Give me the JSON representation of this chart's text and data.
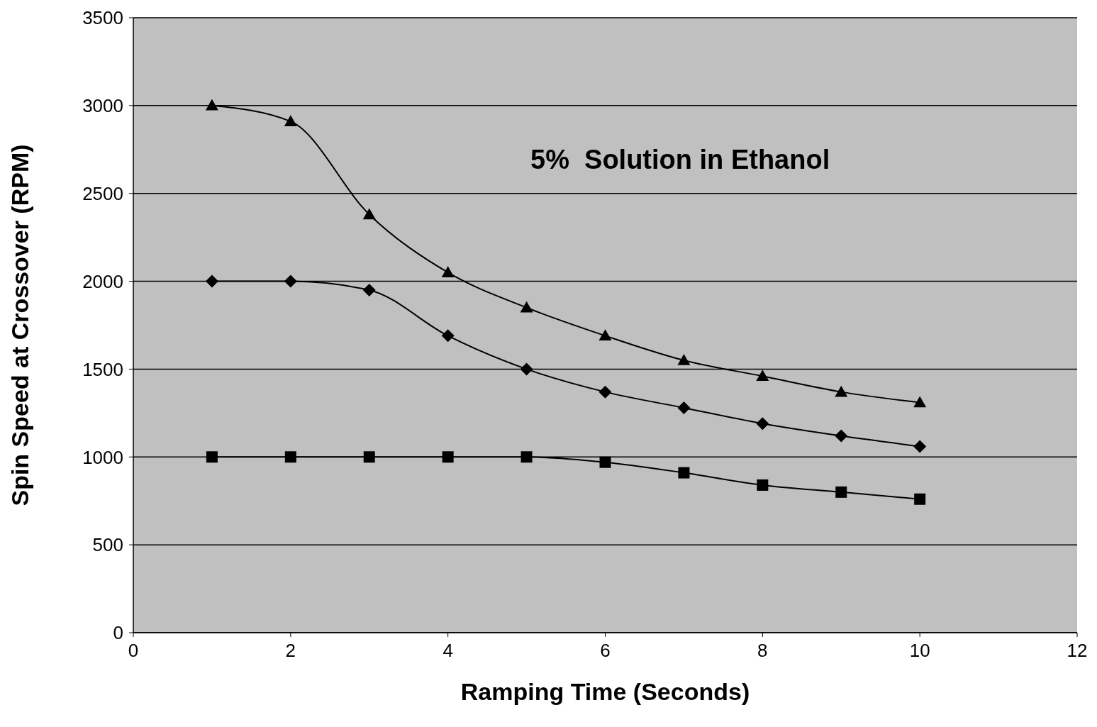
{
  "chart_data": {
    "type": "line",
    "xlabel": "Ramping Time (Seconds)",
    "ylabel": "Spin Speed at Crossover (RPM)",
    "x": [
      1,
      2,
      3,
      4,
      5,
      6,
      7,
      8,
      9,
      10
    ],
    "series": [
      {
        "color": "#000000",
        "marker": "triangle",
        "values": [
          3000,
          2910,
          2380,
          2050,
          1850,
          1690,
          1550,
          1460,
          1370,
          1310
        ]
      },
      {
        "color": "#000000",
        "marker": "diamond",
        "values": [
          2000,
          2000,
          1950,
          1690,
          1500,
          1370,
          1280,
          1190,
          1120,
          1060
        ]
      },
      {
        "color": "#000000",
        "marker": "square",
        "values": [
          1000,
          1000,
          1000,
          1000,
          1000,
          970,
          910,
          840,
          800,
          760
        ]
      }
    ],
    "xlim": [
      0,
      12
    ],
    "xticks": [
      0,
      2,
      4,
      6,
      8,
      10,
      12
    ],
    "ylim": [
      0,
      3500
    ],
    "yticks": [
      0,
      500,
      1000,
      1500,
      2000,
      2500,
      3000,
      3500
    ],
    "grid": "y",
    "legend": false,
    "line_style": "solid",
    "annotations": [
      "5%  Solution in Ethanol"
    ]
  }
}
